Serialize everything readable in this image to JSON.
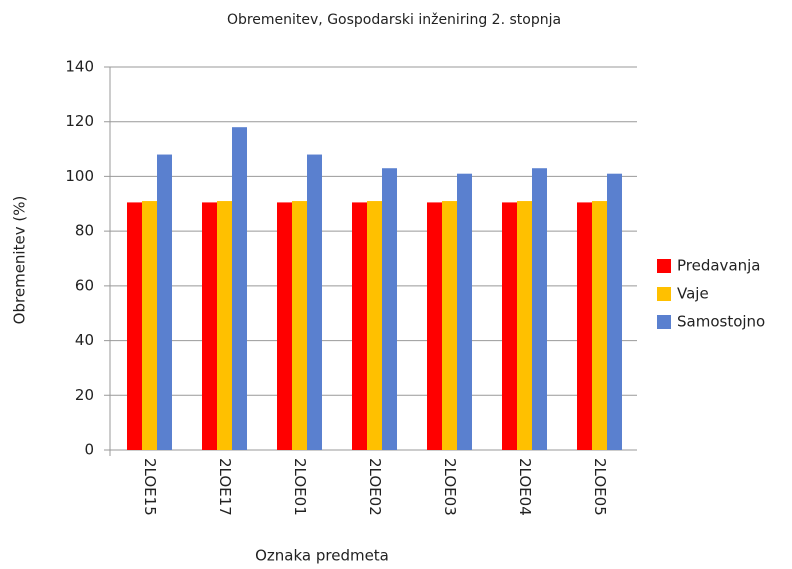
{
  "chart_data": {
    "type": "bar",
    "title": "Obremenitev, Gospodarski inženiring 2. stopnja",
    "x_label": "Oznaka predmeta",
    "y_label": "Obremenitev (%)",
    "categories": [
      "2LOE15",
      "2LOE17",
      "2LOE01",
      "2LOE02",
      "2LOE03",
      "2LOE04",
      "2LOE05"
    ],
    "series": [
      {
        "name": "Predavanja",
        "color": "#ff0000",
        "values": [
          90.5,
          90.5,
          90.5,
          90.5,
          90.5,
          90.5,
          90.5
        ]
      },
      {
        "name": "Vaje",
        "color": "#ffc000",
        "values": [
          91,
          91,
          91,
          91,
          91,
          91,
          91
        ]
      },
      {
        "name": "Samostojno",
        "color": "#5a80cf",
        "values": [
          108,
          118,
          108,
          103,
          101,
          103,
          101
        ]
      }
    ],
    "ylim": [
      0,
      140
    ],
    "yticks": [
      0,
      20,
      40,
      60,
      80,
      100,
      120,
      140
    ],
    "grid": true,
    "legend": "right"
  }
}
